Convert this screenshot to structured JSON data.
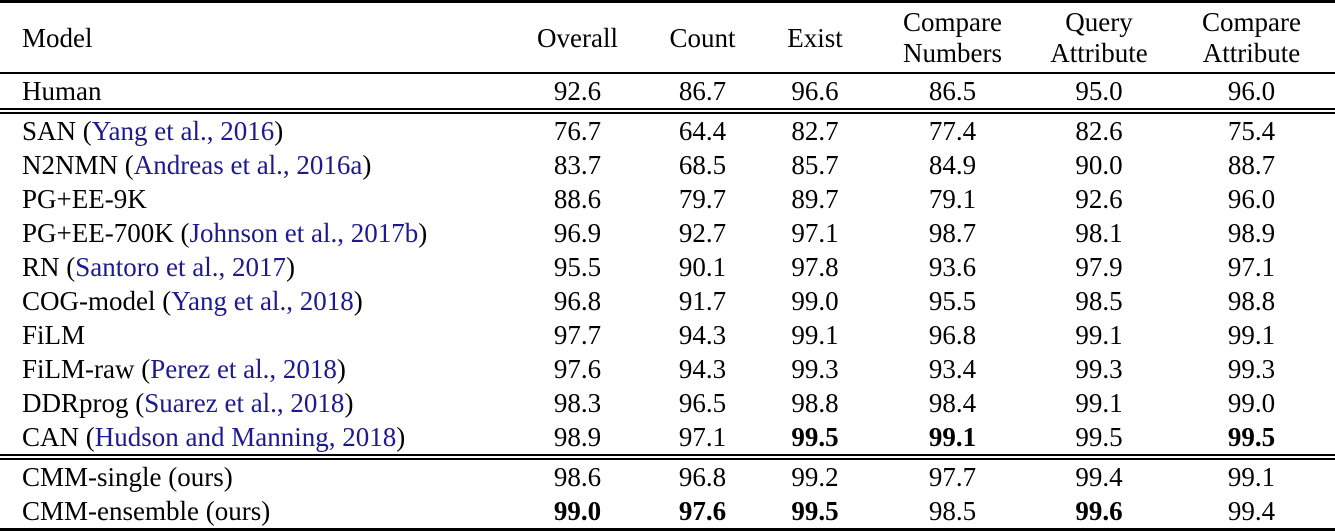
{
  "colors": {
    "citation": "#1c1a8e",
    "text": "#000000",
    "rule": "#000000",
    "background": "#ffffff"
  },
  "table": {
    "columns": [
      "Model",
      "Overall",
      "Count",
      "Exist",
      "Compare Numbers",
      "Query Attribute",
      "Compare Attribute"
    ],
    "rows": [
      {
        "section": "human",
        "pre": "Human",
        "cite": "",
        "post": "",
        "values": [
          "92.6",
          "86.7",
          "96.6",
          "86.5",
          "95.0",
          "96.0"
        ],
        "bold": [
          false,
          false,
          false,
          false,
          false,
          false
        ]
      },
      {
        "section": "baseline",
        "pre": "SAN (",
        "cite": "Yang et al., 2016",
        "post": ")",
        "values": [
          "76.7",
          "64.4",
          "82.7",
          "77.4",
          "82.6",
          "75.4"
        ],
        "bold": [
          false,
          false,
          false,
          false,
          false,
          false
        ]
      },
      {
        "section": "baseline",
        "pre": "N2NMN (",
        "cite": "Andreas et al., 2016a",
        "post": ")",
        "values": [
          "83.7",
          "68.5",
          "85.7",
          "84.9",
          "90.0",
          "88.7"
        ],
        "bold": [
          false,
          false,
          false,
          false,
          false,
          false
        ]
      },
      {
        "section": "baseline",
        "pre": "PG+EE-9K",
        "cite": "",
        "post": "",
        "values": [
          "88.6",
          "79.7",
          "89.7",
          "79.1",
          "92.6",
          "96.0"
        ],
        "bold": [
          false,
          false,
          false,
          false,
          false,
          false
        ]
      },
      {
        "section": "baseline",
        "pre": "PG+EE-700K (",
        "cite": "Johnson et al., 2017b",
        "post": ")",
        "values": [
          "96.9",
          "92.7",
          "97.1",
          "98.7",
          "98.1",
          "98.9"
        ],
        "bold": [
          false,
          false,
          false,
          false,
          false,
          false
        ]
      },
      {
        "section": "baseline",
        "pre": "RN (",
        "cite": "Santoro et al., 2017",
        "post": ")",
        "values": [
          "95.5",
          "90.1",
          "97.8",
          "93.6",
          "97.9",
          "97.1"
        ],
        "bold": [
          false,
          false,
          false,
          false,
          false,
          false
        ]
      },
      {
        "section": "baseline",
        "pre": "COG-model (",
        "cite": "Yang et al., 2018",
        "post": ")",
        "values": [
          "96.8",
          "91.7",
          "99.0",
          "95.5",
          "98.5",
          "98.8"
        ],
        "bold": [
          false,
          false,
          false,
          false,
          false,
          false
        ]
      },
      {
        "section": "baseline",
        "pre": "FiLM",
        "cite": "",
        "post": "",
        "values": [
          "97.7",
          "94.3",
          "99.1",
          "96.8",
          "99.1",
          "99.1"
        ],
        "bold": [
          false,
          false,
          false,
          false,
          false,
          false
        ]
      },
      {
        "section": "baseline",
        "pre": "FiLM-raw (",
        "cite": "Perez et al., 2018",
        "post": ")",
        "values": [
          "97.6",
          "94.3",
          "99.3",
          "93.4",
          "99.3",
          "99.3"
        ],
        "bold": [
          false,
          false,
          false,
          false,
          false,
          false
        ]
      },
      {
        "section": "baseline",
        "pre": "DDRprog (",
        "cite": "Suarez et al., 2018",
        "post": ")",
        "values": [
          "98.3",
          "96.5",
          "98.8",
          "98.4",
          "99.1",
          "99.0"
        ],
        "bold": [
          false,
          false,
          false,
          false,
          false,
          false
        ]
      },
      {
        "section": "baseline",
        "pre": "CAN (",
        "cite": "Hudson and Manning, 2018",
        "post": ")",
        "values": [
          "98.9",
          "97.1",
          "99.5",
          "99.1",
          "99.5",
          "99.5"
        ],
        "bold": [
          false,
          false,
          true,
          true,
          false,
          true
        ]
      },
      {
        "section": "ours",
        "pre": "CMM-single (ours)",
        "cite": "",
        "post": "",
        "values": [
          "98.6",
          "96.8",
          "99.2",
          "97.7",
          "99.4",
          "99.1"
        ],
        "bold": [
          false,
          false,
          false,
          false,
          false,
          false
        ]
      },
      {
        "section": "ours",
        "pre": "CMM-ensemble (ours)",
        "cite": "",
        "post": "",
        "values": [
          "99.0",
          "97.6",
          "99.5",
          "98.5",
          "99.6",
          "99.4"
        ],
        "bold": [
          true,
          true,
          true,
          false,
          true,
          false
        ]
      }
    ]
  }
}
